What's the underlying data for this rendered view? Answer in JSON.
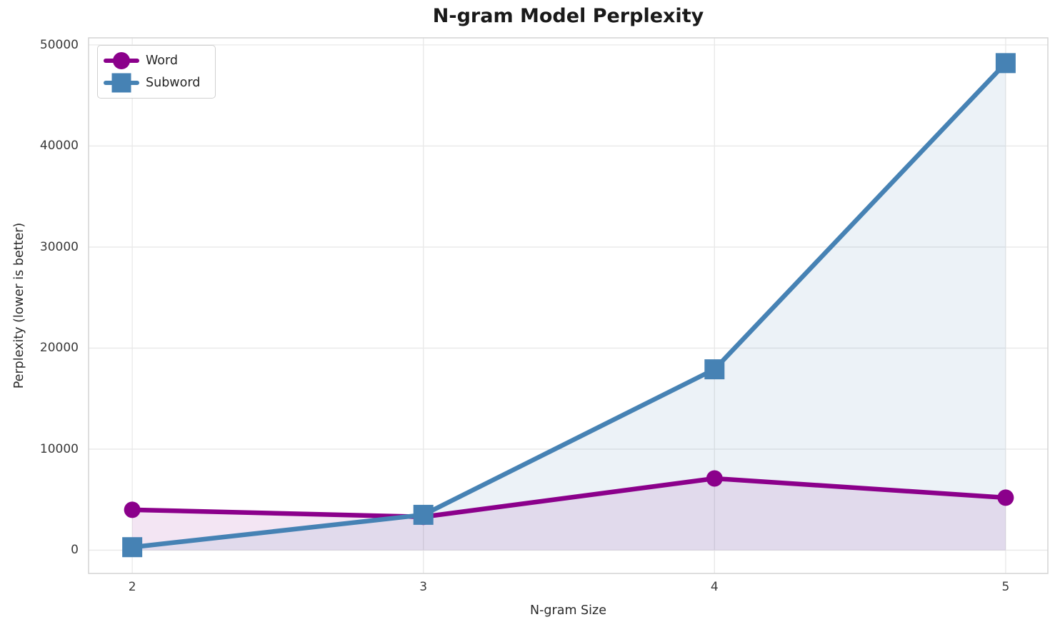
{
  "chart_data": {
    "type": "line",
    "title": "N-gram Model Perplexity",
    "xlabel": "N-gram Size",
    "ylabel": "Perplexity (lower is better)",
    "x": [
      2,
      3,
      4,
      5
    ],
    "xticks": [
      2,
      3,
      4,
      5
    ],
    "yticks": [
      0,
      10000,
      20000,
      30000,
      40000,
      50000
    ],
    "xlim": [
      1.85,
      5.145
    ],
    "ylim": [
      -2300,
      50700
    ],
    "grid": true,
    "area_fill_to_zero": true,
    "legend": {
      "position": "upper left",
      "labels": [
        "Word",
        "Subword"
      ]
    },
    "series": [
      {
        "name": "Word",
        "marker": "circle",
        "color": "#8B008B",
        "fill_alpha": 0.1,
        "values": [
          4000,
          3300,
          7100,
          5200
        ]
      },
      {
        "name": "Subword",
        "marker": "square",
        "color": "#4682B4",
        "fill_alpha": 0.1,
        "values": [
          300,
          3500,
          17900,
          48200
        ]
      }
    ]
  },
  "colors": {
    "background": "#ffffff",
    "grid": "#e8e8e8",
    "spine": "#d4d4d4",
    "tick_text": "#3a3a3a",
    "label_text": "#2b2b2b",
    "title_text": "#1a1a1a",
    "legend_border": "#d0d0d0"
  }
}
